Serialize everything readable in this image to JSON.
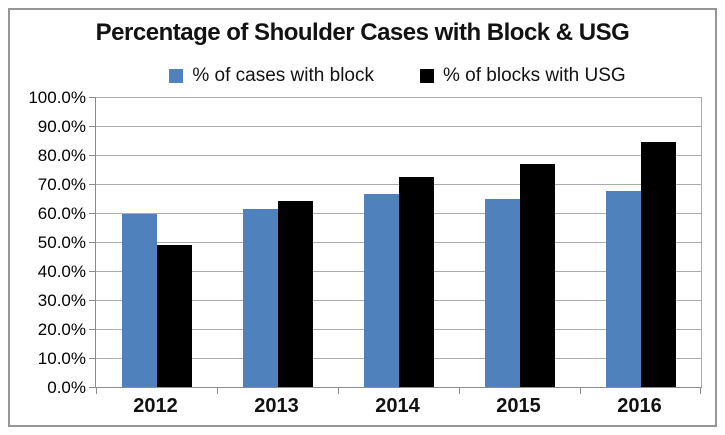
{
  "chart_data": {
    "type": "bar",
    "title": "Percentage of Shoulder Cases with Block & USG",
    "categories": [
      "2012",
      "2013",
      "2014",
      "2015",
      "2016"
    ],
    "series": [
      {
        "name": "% of cases with block",
        "color": "#4F81BD",
        "values": [
          59.5,
          61.5,
          66.5,
          65.0,
          67.5
        ]
      },
      {
        "name": "% of blocks with USG",
        "color": "#000000",
        "values": [
          49.0,
          64.0,
          72.5,
          77.0,
          84.5
        ]
      }
    ],
    "xlabel": "",
    "ylabel": "",
    "ylim": [
      0,
      100
    ],
    "ytick_step": 10,
    "ytick_labels": [
      "0.0%",
      "10.0%",
      "20.0%",
      "30.0%",
      "40.0%",
      "50.0%",
      "60.0%",
      "70.0%",
      "80.0%",
      "90.0%",
      "100.0%"
    ],
    "grid": true,
    "legend_position": "top-center"
  },
  "colors": {
    "gridline": "#ababab",
    "axis": "#8c8c8c",
    "frame_border": "#969696",
    "text": "#121212"
  }
}
